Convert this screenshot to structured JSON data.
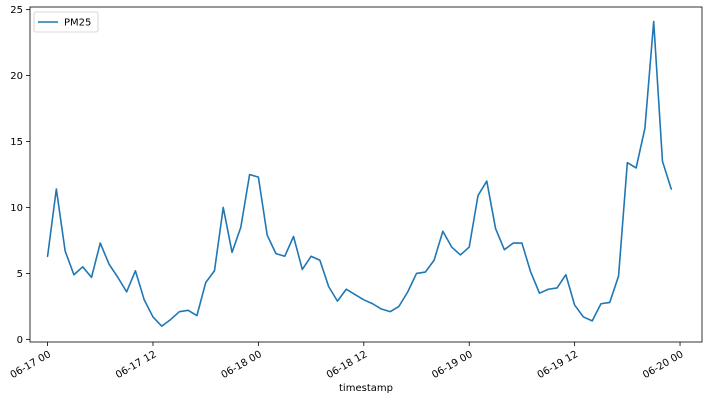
{
  "chart_data": {
    "type": "line",
    "xlabel": "timestamp",
    "ylabel": "",
    "title": "",
    "grid": false,
    "legend_position": "top-left",
    "xlim": [
      "06-16 22:00",
      "06-20 02:30"
    ],
    "ylim": [
      -0.2,
      25.2
    ],
    "x_ticks": [
      "06-17 00",
      "06-17 12",
      "06-18 00",
      "06-18 12",
      "06-19 00",
      "06-19 12",
      "06-20 00"
    ],
    "y_ticks": [
      0,
      5,
      10,
      15,
      20,
      25
    ],
    "series": [
      {
        "name": "PM25",
        "color": "#1f77b4",
        "x": [
          "06-17 00:00",
          "06-17 01:00",
          "06-17 02:00",
          "06-17 03:00",
          "06-17 04:00",
          "06-17 05:00",
          "06-17 06:00",
          "06-17 07:00",
          "06-17 08:00",
          "06-17 09:00",
          "06-17 10:00",
          "06-17 11:00",
          "06-17 12:00",
          "06-17 13:00",
          "06-17 14:00",
          "06-17 15:00",
          "06-17 16:00",
          "06-17 17:00",
          "06-17 18:00",
          "06-17 19:00",
          "06-17 20:00",
          "06-17 21:00",
          "06-17 22:00",
          "06-17 23:00",
          "06-18 00:00",
          "06-18 01:00",
          "06-18 02:00",
          "06-18 03:00",
          "06-18 04:00",
          "06-18 05:00",
          "06-18 06:00",
          "06-18 07:00",
          "06-18 08:00",
          "06-18 09:00",
          "06-18 10:00",
          "06-18 11:00",
          "06-18 12:00",
          "06-18 13:00",
          "06-18 14:00",
          "06-18 15:00",
          "06-18 16:00",
          "06-18 17:00",
          "06-18 18:00",
          "06-18 19:00",
          "06-18 20:00",
          "06-18 21:00",
          "06-18 22:00",
          "06-18 23:00",
          "06-19 00:00",
          "06-19 01:00",
          "06-19 02:00",
          "06-19 03:00",
          "06-19 04:00",
          "06-19 05:00",
          "06-19 06:00",
          "06-19 07:00",
          "06-19 08:00",
          "06-19 09:00",
          "06-19 10:00",
          "06-19 11:00",
          "06-19 12:00",
          "06-19 13:00",
          "06-19 14:00",
          "06-19 15:00",
          "06-19 16:00",
          "06-19 17:00",
          "06-19 18:00",
          "06-19 19:00",
          "06-19 20:00",
          "06-19 21:00",
          "06-19 22:00",
          "06-19 23:00"
        ],
        "values": [
          6.3,
          11.4,
          6.7,
          4.9,
          5.5,
          4.7,
          7.3,
          5.7,
          4.7,
          3.6,
          5.2,
          3.0,
          1.7,
          1.0,
          1.5,
          2.1,
          2.2,
          1.8,
          4.3,
          5.2,
          10.0,
          6.6,
          8.5,
          12.5,
          12.3,
          7.9,
          6.5,
          6.3,
          7.8,
          5.3,
          6.3,
          6.0,
          4.0,
          2.9,
          3.8,
          3.4,
          3.0,
          2.7,
          2.3,
          2.1,
          2.5,
          3.6,
          5.0,
          5.1,
          6.0,
          8.2,
          7.0,
          6.4,
          7.0,
          10.9,
          12.0,
          8.4,
          6.8,
          7.3,
          7.3,
          5.1,
          3.5,
          3.8,
          3.9,
          4.9,
          2.6,
          1.7,
          1.4,
          2.7,
          2.8,
          4.8,
          13.4,
          13.0,
          16.0,
          24.1,
          13.5,
          11.4
        ]
      }
    ]
  }
}
